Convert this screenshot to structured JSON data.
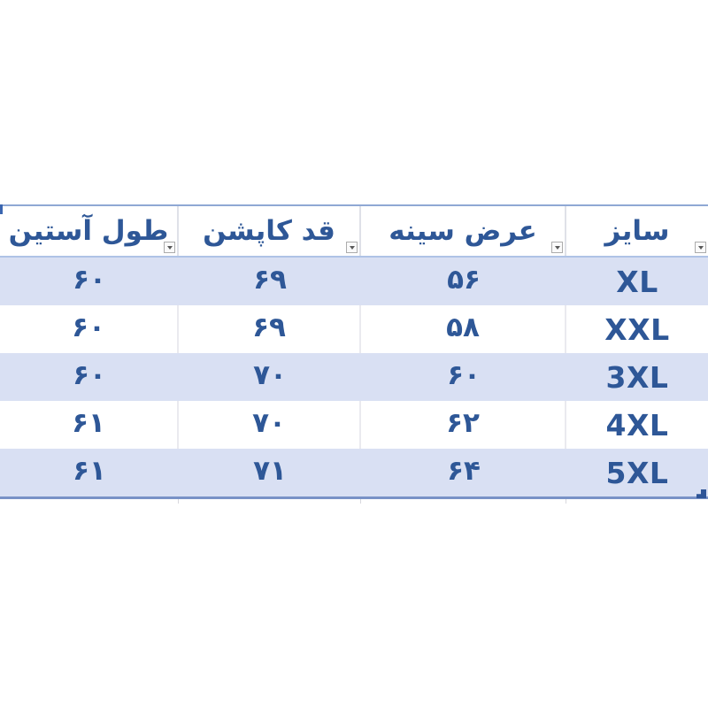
{
  "table": {
    "title_semantic": "jacket-size-chart",
    "columns": [
      {
        "label": "سایز"
      },
      {
        "label": "عرض سینه"
      },
      {
        "label": "قد کاپشن"
      },
      {
        "label": "طول آستین"
      }
    ],
    "rows": [
      {
        "size": "XL",
        "chest": "۵۶",
        "length": "۶۹",
        "sleeve": "۶۰"
      },
      {
        "size": "XXL",
        "chest": "۵۸",
        "length": "۶۹",
        "sleeve": "۶۰"
      },
      {
        "size": "3XL",
        "chest": "۶۰",
        "length": "۷۰",
        "sleeve": "۶۰"
      },
      {
        "size": "4XL",
        "chest": "۶۲",
        "length": "۷۰",
        "sleeve": "۶۱"
      },
      {
        "size": "5XL",
        "chest": "۶۴",
        "length": "۷۱",
        "sleeve": "۶۱"
      }
    ],
    "icons": {
      "filter": "dropdown-arrow",
      "resize": "table-resize-corner"
    },
    "colors": {
      "text_blue": "#2E5797",
      "band_fill": "#D9E0F3",
      "top_border": "#8FA8D4",
      "header_underline": "#AFC3E6",
      "bottom_border": "#7992C7"
    }
  }
}
